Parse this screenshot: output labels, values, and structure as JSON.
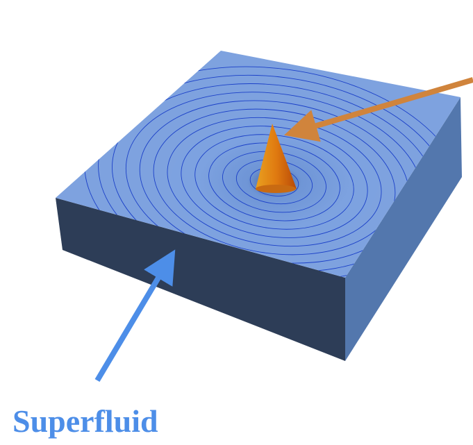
{
  "label": "Superfluid"
}
